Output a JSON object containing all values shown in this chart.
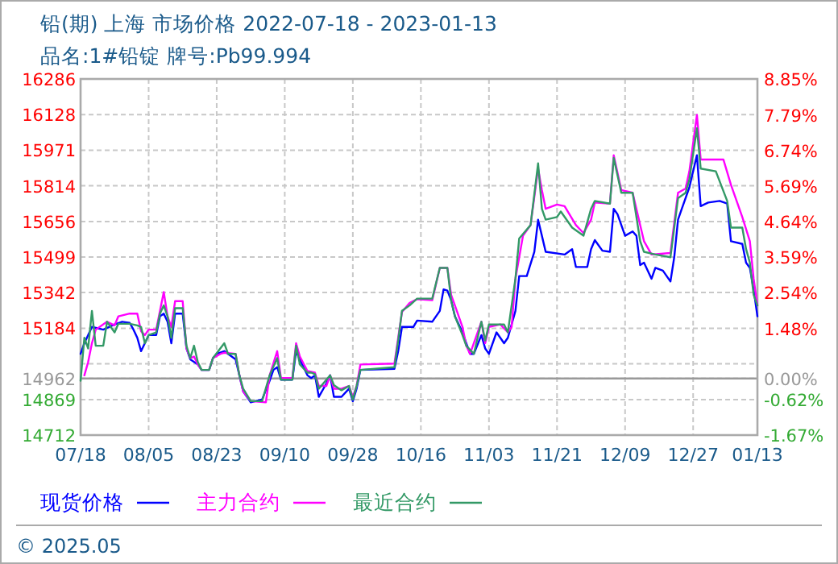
{
  "chart_data": {
    "type": "line",
    "title": "铅(期) 上海 市场价格 2022-07-18 - 2023-01-13",
    "subtitle": "品名:1#铅锭 牌号:Pb99.994",
    "xlim": [
      "2022-07-18",
      "2023-01-13"
    ],
    "xticks": [
      {
        "value": "2022-07-18",
        "label": "07/18"
      },
      {
        "value": "2022-08-05",
        "label": "08/05"
      },
      {
        "value": "2022-08-23",
        "label": "08/23"
      },
      {
        "value": "2022-09-10",
        "label": "09/10"
      },
      {
        "value": "2022-09-28",
        "label": "09/28"
      },
      {
        "value": "2022-10-16",
        "label": "10/16"
      },
      {
        "value": "2022-11-03",
        "label": "11/03"
      },
      {
        "value": "2022-11-21",
        "label": "11/21"
      },
      {
        "value": "2022-12-09",
        "label": "12/09"
      },
      {
        "value": "2022-12-27",
        "label": "12/27"
      },
      {
        "value": "2023-01-13",
        "label": "01/13"
      }
    ],
    "ylim": [
      14712,
      16286
    ],
    "yticks": [
      16286,
      16128,
      15971,
      15814,
      15656,
      15499,
      15342,
      15184,
      {
        "value": 15027,
        "label": null
      },
      14962,
      14869,
      14712
    ],
    "y2lim": [
      -1.67,
      8.85
    ],
    "y2ticks": [
      {
        "value": 8.85,
        "label": "8.85%"
      },
      {
        "value": 7.79,
        "label": "7.79%"
      },
      {
        "value": 6.74,
        "label": "6.74%"
      },
      {
        "value": 5.69,
        "label": "5.69%"
      },
      {
        "value": 4.64,
        "label": "4.64%"
      },
      {
        "value": 3.59,
        "label": "3.59%"
      },
      {
        "value": 2.54,
        "label": "2.54%"
      },
      {
        "value": 1.48,
        "label": "1.48%"
      },
      {
        "value": 0,
        "label": "0.00%"
      },
      {
        "value": -0.62,
        "label": "-0.62%"
      },
      {
        "value": -1.67,
        "label": "-1.67%"
      }
    ],
    "ref_lines": [
      {
        "axis": "y",
        "value": 14962,
        "color": "#999999"
      }
    ],
    "grid": true,
    "legend": "bottom",
    "line_style": "solid",
    "annotations": [
      "© 2025.05"
    ],
    "series": [
      {
        "name": "现货价格",
        "color": "#0000ff",
        "x": [
          "2022-07-18",
          "2022-07-19",
          "2022-07-21",
          "2022-07-24",
          "2022-07-27",
          "2022-07-29",
          "2022-07-31",
          "2022-08-01",
          "2022-08-02",
          "2022-08-03",
          "2022-08-04",
          "2022-08-05",
          "2022-08-07",
          "2022-08-08",
          "2022-08-09",
          "2022-08-10",
          "2022-08-11",
          "2022-08-12",
          "2022-08-14",
          "2022-08-15",
          "2022-08-16",
          "2022-08-18",
          "2022-08-19",
          "2022-08-21",
          "2022-08-22",
          "2022-08-23",
          "2022-08-25",
          "2022-08-26",
          "2022-08-28",
          "2022-08-29",
          "2022-08-30",
          "2022-09-01",
          "2022-09-04",
          "2022-09-06",
          "2022-09-07",
          "2022-09-08",
          "2022-09-09",
          "2022-09-12",
          "2022-09-13",
          "2022-09-14",
          "2022-09-16",
          "2022-09-17",
          "2022-09-18",
          "2022-09-19",
          "2022-09-21",
          "2022-09-22",
          "2022-09-23",
          "2022-09-25",
          "2022-09-27",
          "2022-09-28",
          "2022-09-29",
          "2022-09-30",
          "2022-10-09",
          "2022-10-10",
          "2022-10-11",
          "2022-10-14",
          "2022-10-15",
          "2022-10-19",
          "2022-10-21",
          "2022-10-22",
          "2022-10-23",
          "2022-10-24",
          "2022-10-25",
          "2022-10-27",
          "2022-10-28",
          "2022-10-29",
          "2022-10-30",
          "2022-11-01",
          "2022-11-02",
          "2022-11-03",
          "2022-11-05",
          "2022-11-07",
          "2022-11-08",
          "2022-11-10",
          "2022-11-11",
          "2022-11-13",
          "2022-11-15",
          "2022-11-16",
          "2022-11-17",
          "2022-11-18",
          "2022-11-23",
          "2022-11-25",
          "2022-11-26",
          "2022-11-29",
          "2022-11-30",
          "2022-12-01",
          "2022-12-03",
          "2022-12-05",
          "2022-12-06",
          "2022-12-07",
          "2022-12-09",
          "2022-12-11",
          "2022-12-12",
          "2022-12-13",
          "2022-12-14",
          "2022-12-16",
          "2022-12-17",
          "2022-12-19",
          "2022-12-21",
          "2022-12-22",
          "2022-12-23",
          "2022-12-24",
          "2022-12-26",
          "2022-12-27",
          "2022-12-28",
          "2022-12-29",
          "2022-12-31",
          "2023-01-03",
          "2023-01-05",
          "2023-01-06",
          "2023-01-09",
          "2023-01-10",
          "2023-01-11",
          "2023-01-12",
          "2023-01-13"
        ],
        "values": [
          15071,
          15118,
          15190,
          15178,
          15201,
          15213,
          15208,
          15178,
          15142,
          15083,
          15118,
          15154,
          15154,
          15237,
          15249,
          15213,
          15118,
          15249,
          15249,
          15095,
          15047,
          15024,
          15000,
          15000,
          15052,
          15071,
          15083,
          15071,
          15047,
          14976,
          14905,
          14857,
          14869,
          14952,
          15000,
          15012,
          14957,
          14957,
          15083,
          15047,
          14976,
          14964,
          14976,
          14881,
          14940,
          14976,
          14881,
          14881,
          14917,
          14862,
          14917,
          15000,
          15005,
          15083,
          15190,
          15190,
          15218,
          15213,
          15261,
          15356,
          15351,
          15308,
          15237,
          15166,
          15118,
          15071,
          15071,
          15154,
          15095,
          15071,
          15166,
          15118,
          15142,
          15261,
          15415,
          15415,
          15522,
          15664,
          15593,
          15522,
          15510,
          15534,
          15455,
          15455,
          15534,
          15574,
          15527,
          15522,
          15712,
          15688,
          15593,
          15612,
          15593,
          15463,
          15474,
          15403,
          15451,
          15439,
          15391,
          15498,
          15664,
          15712,
          15807,
          15878,
          15949,
          15724,
          15740,
          15747,
          15735,
          15569,
          15557,
          15474,
          15451,
          15356,
          15237
        ]
      },
      {
        "name": "主力合约",
        "color": "#ff00ff",
        "x": [
          "2022-07-19",
          "2022-07-20",
          "2022-07-21",
          "2022-07-22",
          "2022-07-25",
          "2022-07-27",
          "2022-07-28",
          "2022-07-31",
          "2022-08-02",
          "2022-08-03",
          "2022-08-04",
          "2022-08-05",
          "2022-08-07",
          "2022-08-08",
          "2022-08-09",
          "2022-08-10",
          "2022-08-11",
          "2022-08-12",
          "2022-08-14",
          "2022-08-15",
          "2022-08-16",
          "2022-08-17",
          "2022-08-18",
          "2022-08-19",
          "2022-08-21",
          "2022-08-22",
          "2022-08-24",
          "2022-08-25",
          "2022-08-28",
          "2022-08-29",
          "2022-08-30",
          "2022-09-01",
          "2022-09-05",
          "2022-09-06",
          "2022-09-08",
          "2022-09-09",
          "2022-09-12",
          "2022-09-13",
          "2022-09-14",
          "2022-09-16",
          "2022-09-18",
          "2022-09-19",
          "2022-09-21",
          "2022-09-22",
          "2022-09-23",
          "2022-09-25",
          "2022-09-27",
          "2022-09-28",
          "2022-09-29",
          "2022-09-30",
          "2022-10-09",
          "2022-10-10",
          "2022-10-11",
          "2022-10-13",
          "2022-10-15",
          "2022-10-19",
          "2022-10-21",
          "2022-10-23",
          "2022-10-24",
          "2022-10-25",
          "2022-10-27",
          "2022-10-28",
          "2022-10-29",
          "2022-11-01",
          "2022-11-02",
          "2022-11-03",
          "2022-11-06",
          "2022-11-08",
          "2022-11-09",
          "2022-11-10",
          "2022-11-12",
          "2022-11-14",
          "2022-11-16",
          "2022-11-17",
          "2022-11-18",
          "2022-11-21",
          "2022-11-23",
          "2022-11-26",
          "2022-11-28",
          "2022-11-30",
          "2022-12-01",
          "2022-12-05",
          "2022-12-06",
          "2022-12-08",
          "2022-12-11",
          "2022-12-13",
          "2022-12-14",
          "2022-12-16",
          "2022-12-21",
          "2022-12-23",
          "2022-12-25",
          "2022-12-26",
          "2022-12-28",
          "2022-12-29",
          "2023-01-04",
          "2023-01-06",
          "2023-01-09",
          "2023-01-11",
          "2023-01-12",
          "2023-01-13"
        ],
        "values": [
          14976,
          15035,
          15118,
          15178,
          15213,
          15197,
          15237,
          15249,
          15249,
          15171,
          15154,
          15178,
          15178,
          15261,
          15344,
          15237,
          15190,
          15304,
          15304,
          15095,
          15052,
          15059,
          15024,
          15000,
          15000,
          15052,
          15071,
          15076,
          15071,
          14976,
          14905,
          14862,
          14857,
          14976,
          15083,
          14964,
          14964,
          15118,
          15059,
          14995,
          14988,
          14929,
          14929,
          14976,
          14917,
          14917,
          14929,
          14881,
          14929,
          15024,
          15028,
          15142,
          15256,
          15296,
          15313,
          15308,
          15451,
          15451,
          15332,
          15285,
          15190,
          15107,
          15071,
          15213,
          15118,
          15190,
          15201,
          15166,
          15190,
          15403,
          15593,
          15640,
          15890,
          15795,
          15712,
          15731,
          15724,
          15640,
          15605,
          15664,
          15740,
          15735,
          15949,
          15795,
          15783,
          15640,
          15569,
          15510,
          15517,
          15783,
          15802,
          15878,
          16127,
          15930,
          15930,
          15818,
          15676,
          15569,
          15403,
          15285
        ]
      },
      {
        "name": "最近合约",
        "color": "#339966",
        "x": [
          "2022-07-18",
          "2022-07-19",
          "2022-07-20",
          "2022-07-21",
          "2022-07-22",
          "2022-07-24",
          "2022-07-25",
          "2022-07-27",
          "2022-07-28",
          "2022-07-31",
          "2022-08-02",
          "2022-08-03",
          "2022-08-04",
          "2022-08-05",
          "2022-08-07",
          "2022-08-08",
          "2022-08-09",
          "2022-08-10",
          "2022-08-11",
          "2022-08-12",
          "2022-08-14",
          "2022-08-15",
          "2022-08-16",
          "2022-08-17",
          "2022-08-18",
          "2022-08-19",
          "2022-08-21",
          "2022-08-22",
          "2022-08-25",
          "2022-08-26",
          "2022-08-28",
          "2022-08-29",
          "2022-08-30",
          "2022-09-01",
          "2022-09-04",
          "2022-09-06",
          "2022-09-08",
          "2022-09-09",
          "2022-09-12",
          "2022-09-13",
          "2022-09-14",
          "2022-09-16",
          "2022-09-17",
          "2022-09-18",
          "2022-09-19",
          "2022-09-22",
          "2022-09-23",
          "2022-09-25",
          "2022-09-27",
          "2022-09-28",
          "2022-09-29",
          "2022-09-30",
          "2022-10-09",
          "2022-10-10",
          "2022-10-11",
          "2022-10-13",
          "2022-10-15",
          "2022-10-19",
          "2022-10-21",
          "2022-10-23",
          "2022-10-24",
          "2022-10-25",
          "2022-10-27",
          "2022-10-28",
          "2022-10-30",
          "2022-11-01",
          "2022-11-02",
          "2022-11-03",
          "2022-11-07",
          "2022-11-08",
          "2022-11-10",
          "2022-11-11",
          "2022-11-14",
          "2022-11-16",
          "2022-11-17",
          "2022-11-18",
          "2022-11-21",
          "2022-11-22",
          "2022-11-25",
          "2022-11-28",
          "2022-11-30",
          "2022-12-01",
          "2022-12-05",
          "2022-12-06",
          "2022-12-08",
          "2022-12-11",
          "2022-12-13",
          "2022-12-14",
          "2022-12-17",
          "2022-12-21",
          "2022-12-23",
          "2022-12-25",
          "2022-12-26",
          "2022-12-28",
          "2022-12-29",
          "2023-01-02",
          "2023-01-05",
          "2023-01-06",
          "2023-01-09",
          "2023-01-10",
          "2023-01-11",
          "2023-01-12",
          "2023-01-13"
        ],
        "values": [
          14952,
          15142,
          15095,
          15261,
          15107,
          15107,
          15213,
          15166,
          15204,
          15204,
          15197,
          15190,
          15118,
          15154,
          15166,
          15249,
          15285,
          15237,
          15142,
          15273,
          15273,
          15107,
          15052,
          15107,
          15035,
          15000,
          15000,
          15052,
          15118,
          15071,
          15071,
          14976,
          14917,
          14862,
          14862,
          14976,
          15052,
          14957,
          14957,
          15107,
          15024,
          14988,
          14988,
          14981,
          14917,
          14976,
          14933,
          14910,
          14929,
          14869,
          14929,
          15000,
          15012,
          15130,
          15261,
          15285,
          15315,
          15315,
          15451,
          15451,
          15308,
          15237,
          15154,
          15107,
          15071,
          15213,
          15130,
          15201,
          15201,
          15166,
          15403,
          15581,
          15640,
          15913,
          15712,
          15664,
          15676,
          15700,
          15629,
          15593,
          15712,
          15747,
          15735,
          15937,
          15783,
          15783,
          15569,
          15522,
          15510,
          15498,
          15759,
          15783,
          15842,
          16068,
          15890,
          15878,
          15747,
          15629,
          15629,
          15534,
          15474,
          15332,
          15285
        ]
      }
    ]
  }
}
